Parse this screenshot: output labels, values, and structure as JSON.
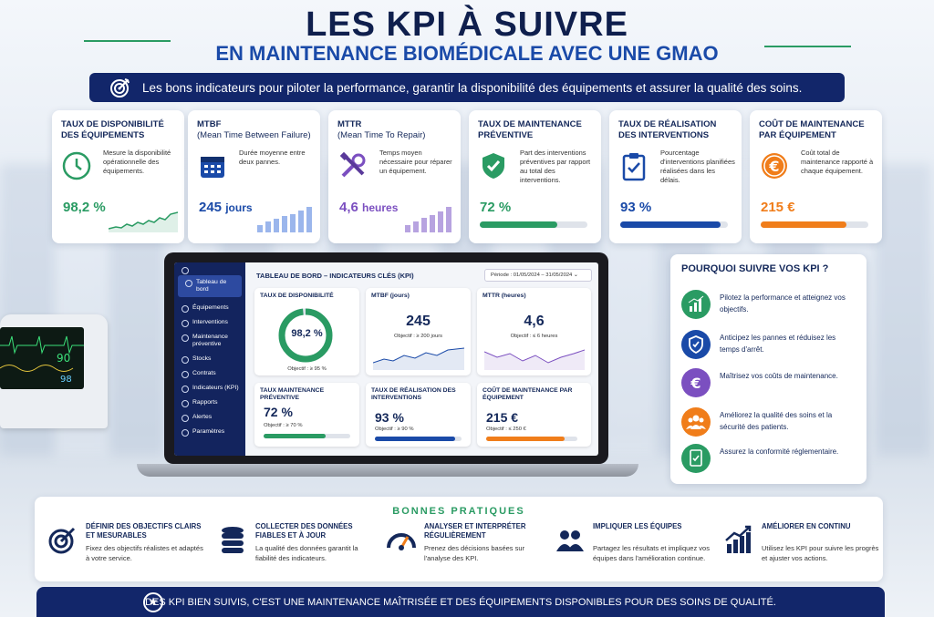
{
  "header": {
    "title": "LES KPI À SUIVRE",
    "subtitle": "EN MAINTENANCE BIOMÉDICALE AVEC UNE GMAO",
    "tagline": "Les bons indicateurs pour piloter la performance, garantir la disponibilité des équipements et assurer la qualité des soins."
  },
  "kpis": [
    {
      "t1": "TAUX DE DISPONIBILITÉ",
      "t2": "DES ÉQUIPEMENTS",
      "desc": "Mesure la disponibilité opérationnelle des équipements.",
      "value": "98,2 %",
      "color": "#2a9b63",
      "icon": "clock-icon",
      "level": "sparkline"
    },
    {
      "t1": "MTBF",
      "t2": "(Mean Time Between Failure)",
      "desc": "Durée moyenne entre deux pannes.",
      "value": "245",
      "unit": "jours",
      "color": "#1a4aa8",
      "icon": "calendar-icon"
    },
    {
      "t1": "MTTR",
      "t2": "(Mean Time To Repair)",
      "desc": "Temps moyen nécessaire pour réparer un équipement.",
      "value": "4,6",
      "unit": "heures",
      "color": "#7b4fc0",
      "icon": "tools-icon"
    },
    {
      "t1": "TAUX DE MAINTENANCE",
      "t2": "PRÉVENTIVE",
      "desc": "Part des interventions préventives par rapport au total des interventions.",
      "value": "72 %",
      "color": "#2a9b63",
      "icon": "shield-check-icon",
      "fill": 0.72
    },
    {
      "t1": "TAUX DE RÉALISATION",
      "t2": "DES INTERVENTIONS",
      "desc": "Pourcentage d'interventions planifiées réalisées dans les délais.",
      "value": "93 %",
      "color": "#1a4aa8",
      "icon": "clipboard-check-icon",
      "fill": 0.93
    },
    {
      "t1": "COÛT DE MAINTENANCE",
      "t2": "PAR ÉQUIPEMENT",
      "desc": "Coût total de maintenance rapporté à chaque équipement.",
      "value": "215 €",
      "color": "#f07d1a",
      "icon": "euro-icon",
      "fill": 0.8
    }
  ],
  "dashboard": {
    "sidebar": [
      "Tableau de bord",
      "Équipements",
      "Interventions",
      "Maintenance préventive",
      "Stocks",
      "Contrats",
      "Indicateurs (KPI)",
      "Rapports",
      "Alertes",
      "Paramètres"
    ],
    "title": "TABLEAU DE BORD – INDICATEURS CLÉS (KPI)",
    "period": "Période : 01/05/2024 – 31/05/2024",
    "c1": {
      "h": "TAUX DE DISPONIBILITÉ",
      "v": "98,2 %",
      "o": "Objectif : ≥ 95 %",
      "fill": 0.982
    },
    "c2": {
      "h": "MTBF (jours)",
      "v": "245",
      "o": "Objectif : ≥ 200 jours"
    },
    "c3": {
      "h": "MTTR (heures)",
      "v": "4,6",
      "o": "Objectif : ≤ 6 heures"
    },
    "c4": {
      "h": "TAUX MAINTENANCE PRÉVENTIVE",
      "v": "72 %",
      "o": "Objectif : ≥ 70 %",
      "fill": 0.72
    },
    "c5": {
      "h": "TAUX DE RÉALISATION DES INTERVENTIONS",
      "v": "93 %",
      "o": "Objectif : ≥ 90 %",
      "fill": 0.93
    },
    "c6": {
      "h": "COÛT DE MAINTENANCE PAR ÉQUIPEMENT",
      "v": "215 €",
      "o": "Objectif : ≤ 250 €",
      "fill": 0.86
    }
  },
  "why": {
    "title": "POURQUOI SUIVRE VOS KPI ?",
    "items": [
      {
        "text": "Pilotez la performance et atteignez vos objectifs.",
        "color": "#2a9b63",
        "icon": "chart-icon"
      },
      {
        "text": "Anticipez les pannes et réduisez les temps d'arrêt.",
        "color": "#1a4aa8",
        "icon": "shield-icon"
      },
      {
        "text": "Maîtrisez vos coûts de maintenance.",
        "color": "#7b4fc0",
        "icon": "euro-icon"
      },
      {
        "text": "Améliorez la qualité des soins et la sécurité des patients.",
        "color": "#f07d1a",
        "icon": "people-icon"
      },
      {
        "text": "Assurez la conformité réglementaire.",
        "color": "#2a9b63",
        "icon": "document-check-icon"
      }
    ]
  },
  "practices": {
    "title": "BONNES PRATIQUES",
    "items": [
      {
        "h": "DÉFINIR DES OBJECTIFS CLAIRS ET MESURABLES",
        "d": "Fixez des objectifs réalistes et adaptés à votre service.",
        "icon": "target-icon"
      },
      {
        "h": "COLLECTER DES DONNÉES FIABLES ET À JOUR",
        "d": "La qualité des données garantit la fiabilité des indicateurs.",
        "icon": "database-icon"
      },
      {
        "h": "ANALYSER ET INTERPRÉTER RÉGULIÈREMENT",
        "d": "Prenez des décisions basées sur l'analyse des KPI.",
        "icon": "gauge-icon"
      },
      {
        "h": "IMPLIQUER LES ÉQUIPES",
        "d": "Partagez les résultats et impliquez vos équipes dans l'amélioration continue.",
        "icon": "team-icon"
      },
      {
        "h": "AMÉLIORER EN CONTINU",
        "d": "Utilisez les KPI pour suivre les progrès et ajuster vos actions.",
        "icon": "growth-icon"
      }
    ]
  },
  "footer": "DES KPI BIEN SUIVIS, C'EST UNE  MAINTENANCE MAÎTRISÉE ET DES ÉQUIPEMENTS DISPONIBLES POUR DES SOINS DE QUALITÉ."
}
